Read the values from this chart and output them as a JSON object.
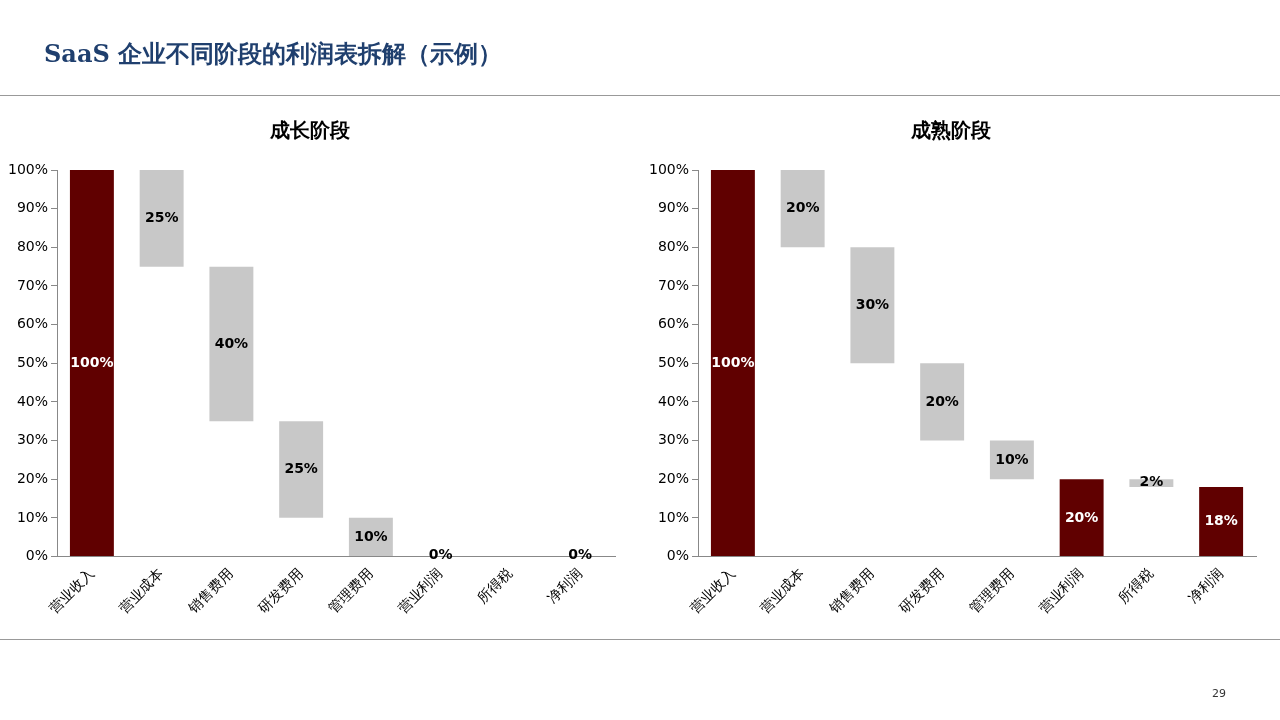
{
  "chart_data": [
    {
      "type": "other",
      "title": "SaaS 企业不同阶段的利润表拆解（示例）",
      "annotations": [
        "29"
      ]
    },
    {
      "type": "bar",
      "title": "成长阶段",
      "categories": [
        "营业收入",
        "营业成本",
        "销售费用",
        "研发费用",
        "管理费用",
        "营业利润",
        "所得税",
        "净利润"
      ],
      "values": [
        100,
        25,
        40,
        25,
        10,
        0,
        null,
        0
      ],
      "base": [
        0,
        75,
        35,
        10,
        0,
        null,
        null,
        null
      ],
      "colors": [
        "#600000",
        "#c8c8c8",
        "#c8c8c8",
        "#c8c8c8",
        "#c8c8c8",
        "#600000",
        "#c8c8c8",
        "#600000"
      ],
      "value_labels": [
        "100%",
        "25%",
        "40%",
        "25%",
        "10%",
        "0%",
        null,
        "0%"
      ],
      "ylim": [
        0,
        100
      ],
      "yticks": [
        {
          "value": 0,
          "label": "0%"
        },
        {
          "value": 10,
          "label": "10%"
        },
        {
          "value": 20,
          "label": "20%"
        },
        {
          "value": 30,
          "label": "30%"
        },
        {
          "value": 40,
          "label": "40%"
        },
        {
          "value": 50,
          "label": "50%"
        },
        {
          "value": 60,
          "label": "60%"
        },
        {
          "value": 70,
          "label": "70%"
        },
        {
          "value": 80,
          "label": "80%"
        },
        {
          "value": 90,
          "label": "90%"
        },
        {
          "value": 100,
          "label": "100%"
        }
      ]
    },
    {
      "type": "bar",
      "title": "成熟阶段",
      "categories": [
        "营业收入",
        "营业成本",
        "销售费用",
        "研发费用",
        "管理费用",
        "营业利润",
        "所得税",
        "净利润"
      ],
      "values": [
        100,
        20,
        30,
        20,
        10,
        20,
        2,
        18
      ],
      "base": [
        0,
        80,
        50,
        30,
        20,
        0,
        18,
        0
      ],
      "colors": [
        "#600000",
        "#c8c8c8",
        "#c8c8c8",
        "#c8c8c8",
        "#c8c8c8",
        "#600000",
        "#c8c8c8",
        "#600000"
      ],
      "value_labels": [
        "100%",
        "20%",
        "30%",
        "20%",
        "10%",
        "20%",
        "2%",
        "18%"
      ],
      "ylim": [
        0,
        100
      ],
      "yticks": [
        {
          "value": 0,
          "label": "0%"
        },
        {
          "value": 10,
          "label": "10%"
        },
        {
          "value": 20,
          "label": "20%"
        },
        {
          "value": 30,
          "label": "30%"
        },
        {
          "value": 40,
          "label": "40%"
        },
        {
          "value": 50,
          "label": "50%"
        },
        {
          "value": 60,
          "label": "60%"
        },
        {
          "value": 70,
          "label": "70%"
        },
        {
          "value": 80,
          "label": "80%"
        },
        {
          "value": 90,
          "label": "90%"
        },
        {
          "value": 100,
          "label": "100%"
        }
      ]
    }
  ]
}
